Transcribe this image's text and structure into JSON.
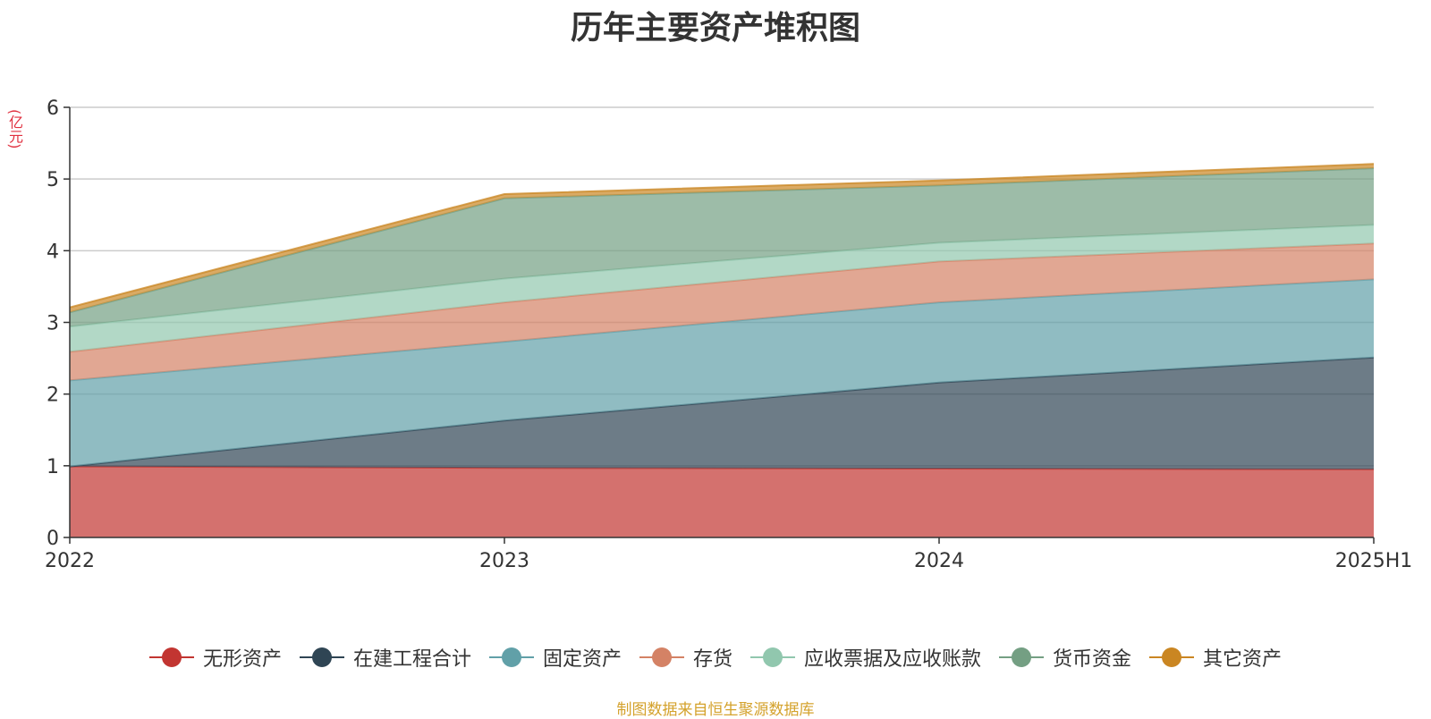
{
  "chart_data": {
    "type": "area",
    "stacked": true,
    "title": "历年主要资产堆积图",
    "unit_label": "(亿元)",
    "categories": [
      "2022",
      "2023",
      "2024",
      "2025H1"
    ],
    "ylim": [
      0,
      6
    ],
    "yticks": [
      "0",
      "1",
      "2",
      "3",
      "4",
      "5",
      "6"
    ],
    "grid": true,
    "legend_position": "bottom",
    "series": [
      {
        "name": "无形资产",
        "color": "#c23531",
        "values": [
          0.99,
          0.97,
          0.96,
          0.95
        ]
      },
      {
        "name": "在建工程合计",
        "color": "#2f4554",
        "values": [
          0.0,
          0.66,
          1.2,
          1.56
        ]
      },
      {
        "name": "固定资产",
        "color": "#61a0a8",
        "values": [
          1.2,
          1.1,
          1.12,
          1.09
        ]
      },
      {
        "name": "存货",
        "color": "#d48265",
        "values": [
          0.4,
          0.55,
          0.57,
          0.5
        ]
      },
      {
        "name": "应收票据及应收账款",
        "color": "#91c7ae",
        "values": [
          0.35,
          0.33,
          0.26,
          0.26
        ]
      },
      {
        "name": "货币资金",
        "color": "#749f83",
        "values": [
          0.2,
          1.12,
          0.8,
          0.79
        ]
      },
      {
        "name": "其它资产",
        "color": "#ca8622",
        "values": [
          0.07,
          0.06,
          0.07,
          0.06
        ]
      }
    ]
  },
  "footer_note": "制图数据来自恒生聚源数据库"
}
